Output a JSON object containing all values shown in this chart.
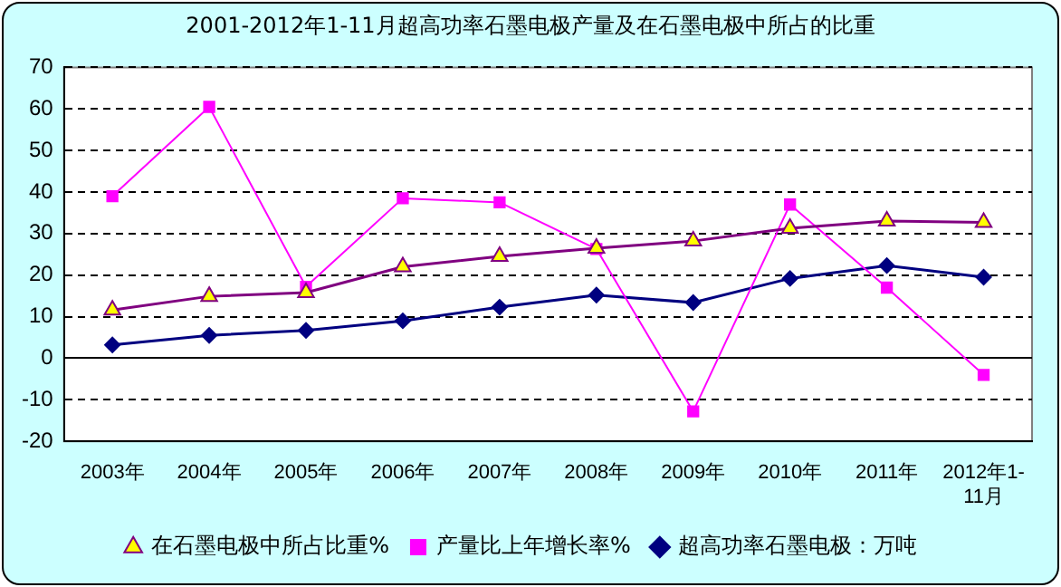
{
  "chart_data": {
    "type": "line",
    "title": "2001-2012年1-11月超高功率石墨电极产量及在石墨电极中所占的比重",
    "categories": [
      "2003年",
      "2004年",
      "2005年",
      "2006年",
      "2007年",
      "2008年",
      "2009年",
      "2010年",
      "2011年",
      "2012年1-11月"
    ],
    "series": [
      {
        "name": "超高功率石墨电极：万吨",
        "color": "#000080",
        "marker": "diamond",
        "values": [
          3.2,
          5.5,
          6.7,
          9,
          12.3,
          15.2,
          13.4,
          19.2,
          22.3,
          19.5
        ]
      },
      {
        "name": "产量比上年增长率%",
        "color": "#ff00ff",
        "marker": "square",
        "values": [
          39,
          60.5,
          17.2,
          38.5,
          37.5,
          26.3,
          -12.8,
          37,
          17,
          -4
        ]
      },
      {
        "name": "在石墨电极中所占比重%",
        "color": "#800080",
        "marker": "triangle",
        "values": [
          11.6,
          14.9,
          15.8,
          22,
          24.5,
          26.5,
          28.2,
          31.3,
          33,
          32.7
        ]
      }
    ],
    "ylim": [
      -20,
      70
    ],
    "yticks": [
      -20,
      -10,
      0,
      10,
      20,
      30,
      40,
      50,
      60,
      70
    ],
    "grid": "y",
    "legend": "bottom"
  }
}
